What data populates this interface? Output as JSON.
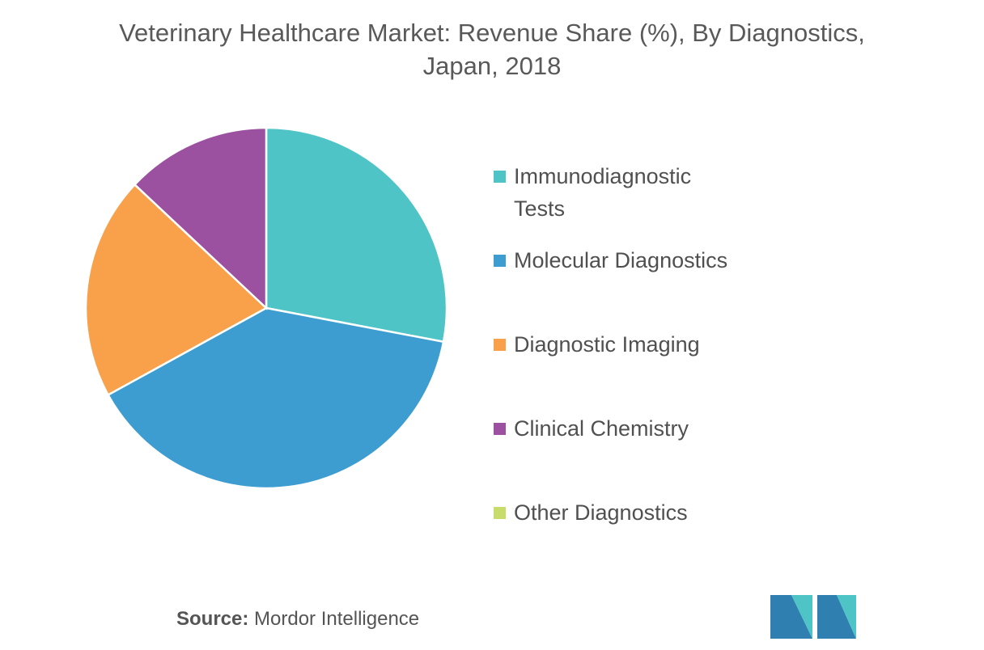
{
  "chart_data": {
    "type": "pie",
    "title": "Veterinary Healthcare Market: Revenue Share (%), By Diagnostics, Japan, 2018",
    "categories": [
      "Immunodiagnostic Tests",
      "Molecular Diagnostics",
      "Diagnostic Imaging",
      "Clinical Chemistry",
      "Other Diagnostics"
    ],
    "values": [
      28,
      39,
      20,
      13,
      0
    ],
    "colors": [
      "#4fc4c6",
      "#3d9dd0",
      "#f9a04a",
      "#9b51a0",
      "#c8dc6b"
    ],
    "source_label": "Source:",
    "source": "Mordor Intelligence"
  }
}
